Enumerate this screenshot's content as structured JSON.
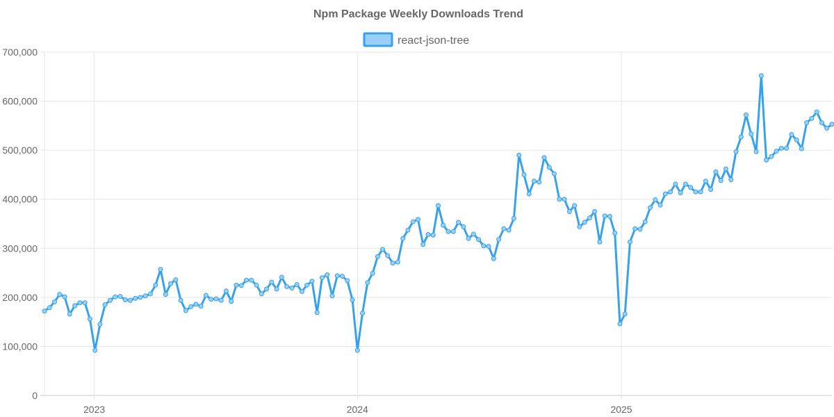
{
  "chart_data": {
    "type": "line",
    "title": "Npm Package Weekly Downloads Trend",
    "xlabel": "",
    "ylabel": "",
    "ylim": [
      0,
      700000
    ],
    "y_ticks": [
      0,
      100000,
      200000,
      300000,
      400000,
      500000,
      600000,
      700000
    ],
    "y_tick_labels": [
      "0",
      "100,000",
      "200,000",
      "300,000",
      "400,000",
      "500,000",
      "600,000",
      "700,000"
    ],
    "x_range": [
      "2022-10-24",
      "2025-10-20"
    ],
    "x_ticks": [
      "2023-01-01",
      "2024-01-01",
      "2025-01-01"
    ],
    "x_tick_labels": [
      "2023",
      "2024",
      "2025"
    ],
    "grid": true,
    "legend_position": "top-center",
    "series": [
      {
        "name": "react-json-tree",
        "color": "#36a2eb",
        "fill": "#9ad0f5",
        "start_date": "2022-10-24",
        "interval_days": 7,
        "values": [
          172000,
          179000,
          191000,
          206000,
          201000,
          166000,
          183000,
          189000,
          189000,
          156000,
          92000,
          145000,
          185000,
          194000,
          201000,
          202000,
          195000,
          194000,
          198000,
          200000,
          203000,
          207000,
          225000,
          257000,
          206000,
          228000,
          236000,
          194000,
          173000,
          181000,
          186000,
          182000,
          204000,
          196000,
          197000,
          194000,
          213000,
          192000,
          225000,
          224000,
          235000,
          235000,
          225000,
          207000,
          217000,
          231000,
          217000,
          241000,
          222000,
          219000,
          226000,
          212000,
          225000,
          233000,
          169000,
          240000,
          246000,
          203000,
          244000,
          243000,
          234000,
          195000,
          92000,
          168000,
          230000,
          249000,
          283000,
          298000,
          285000,
          270000,
          272000,
          320000,
          337000,
          354000,
          359000,
          308000,
          328000,
          327000,
          387000,
          347000,
          334000,
          334000,
          353000,
          344000,
          320000,
          329000,
          318000,
          305000,
          304000,
          279000,
          318000,
          340000,
          337000,
          361000,
          490000,
          450000,
          411000,
          437000,
          435000,
          485000,
          465000,
          452000,
          400000,
          400000,
          375000,
          387000,
          344000,
          353000,
          362000,
          375000,
          313000,
          366000,
          365000,
          331000,
          146000,
          166000,
          313000,
          340000,
          339000,
          354000,
          383000,
          399000,
          388000,
          411000,
          415000,
          431000,
          413000,
          431000,
          424000,
          415000,
          415000,
          437000,
          420000,
          456000,
          438000,
          462000,
          440000,
          497000,
          527000,
          572000,
          533000,
          497000,
          652000,
          480000,
          487000,
          498000,
          504000,
          504000,
          532000,
          521000,
          503000,
          556000,
          565000,
          578000,
          556000,
          545000,
          553000
        ]
      }
    ]
  }
}
